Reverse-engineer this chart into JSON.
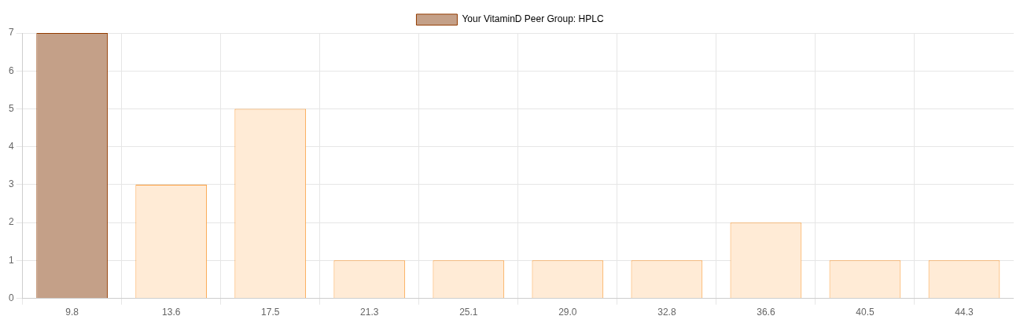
{
  "chart_data": {
    "type": "bar",
    "categories": [
      "9.8",
      "13.6",
      "17.5",
      "21.3",
      "25.1",
      "29.0",
      "32.8",
      "36.6",
      "40.5",
      "44.3"
    ],
    "series": [
      {
        "name": "Your VitaminD Peer Group: HPLC",
        "color": "#c4a088",
        "colors": [
          "#c4a088",
          "#ffebd6",
          "#ffebd6",
          "#ffebd6",
          "#ffebd6",
          "#ffebd6",
          "#ffebd6",
          "#ffebd6",
          "#ffebd6",
          "#ffebd6"
        ],
        "values": [
          7,
          3,
          5,
          1,
          1,
          1,
          1,
          2,
          1,
          1
        ]
      }
    ],
    "ylim": [
      0,
      7
    ],
    "yticks": [
      0,
      1,
      2,
      3,
      4,
      5,
      6,
      7
    ],
    "grid": true,
    "legend": "top"
  }
}
